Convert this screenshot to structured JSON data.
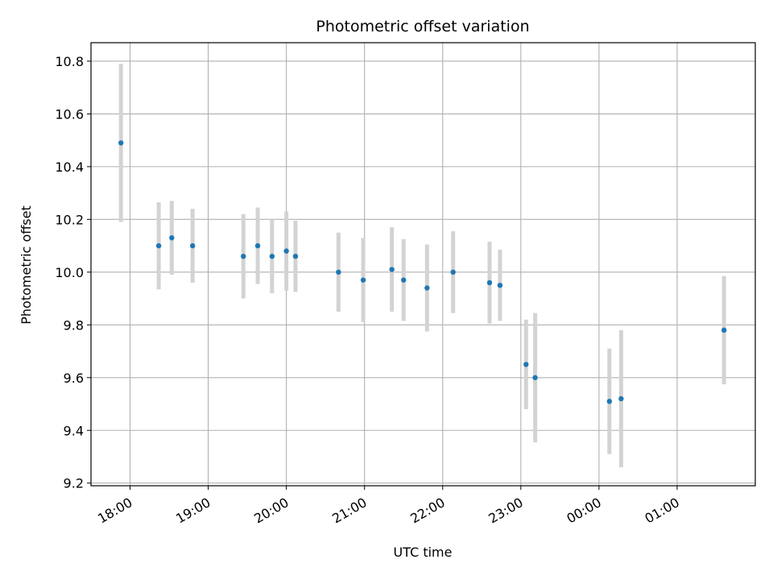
{
  "chart_data": {
    "type": "scatter",
    "title": "Photometric offset variation",
    "xlabel": "UTC time",
    "ylabel": "Photometric offset",
    "x_ticks": [
      "18:00",
      "19:00",
      "20:00",
      "21:00",
      "22:00",
      "23:00",
      "00:00",
      "01:00"
    ],
    "y_ticks": [
      "9.2",
      "9.4",
      "9.6",
      "9.8",
      "10.0",
      "10.2",
      "10.4",
      "10.6",
      "10.8"
    ],
    "ylim": [
      9.19,
      10.87
    ],
    "xlim": [
      "17:30",
      "02:00"
    ],
    "grid": true,
    "series": [
      {
        "marker_color": "#1f77b4",
        "errorbar_color": "#d3d3d3",
        "points": [
          {
            "x": "17:53",
            "y": 10.49,
            "err": 0.3
          },
          {
            "x": "18:22",
            "y": 10.1,
            "err": 0.165
          },
          {
            "x": "18:32",
            "y": 10.13,
            "err": 0.14
          },
          {
            "x": "18:48",
            "y": 10.1,
            "err": 0.14
          },
          {
            "x": "19:27",
            "y": 10.06,
            "err": 0.16
          },
          {
            "x": "19:38",
            "y": 10.1,
            "err": 0.145
          },
          {
            "x": "19:49",
            "y": 10.06,
            "err": 0.14
          },
          {
            "x": "20:00",
            "y": 10.08,
            "err": 0.15
          },
          {
            "x": "20:07",
            "y": 10.06,
            "err": 0.135
          },
          {
            "x": "20:40",
            "y": 10.0,
            "err": 0.15
          },
          {
            "x": "20:59",
            "y": 9.97,
            "err": 0.16
          },
          {
            "x": "21:21",
            "y": 10.01,
            "err": 0.16
          },
          {
            "x": "21:30",
            "y": 9.97,
            "err": 0.155
          },
          {
            "x": "21:48",
            "y": 9.94,
            "err": 0.165
          },
          {
            "x": "22:08",
            "y": 10.0,
            "err": 0.155
          },
          {
            "x": "22:36",
            "y": 9.96,
            "err": 0.155
          },
          {
            "x": "22:44",
            "y": 9.95,
            "err": 0.135
          },
          {
            "x": "23:04",
            "y": 9.65,
            "err": 0.17
          },
          {
            "x": "23:11",
            "y": 9.6,
            "err": 0.245
          },
          {
            "x": "00:08",
            "y": 9.51,
            "err": 0.2
          },
          {
            "x": "00:17",
            "y": 9.52,
            "err": 0.26
          },
          {
            "x": "01:36",
            "y": 9.78,
            "err": 0.205
          }
        ]
      }
    ]
  }
}
